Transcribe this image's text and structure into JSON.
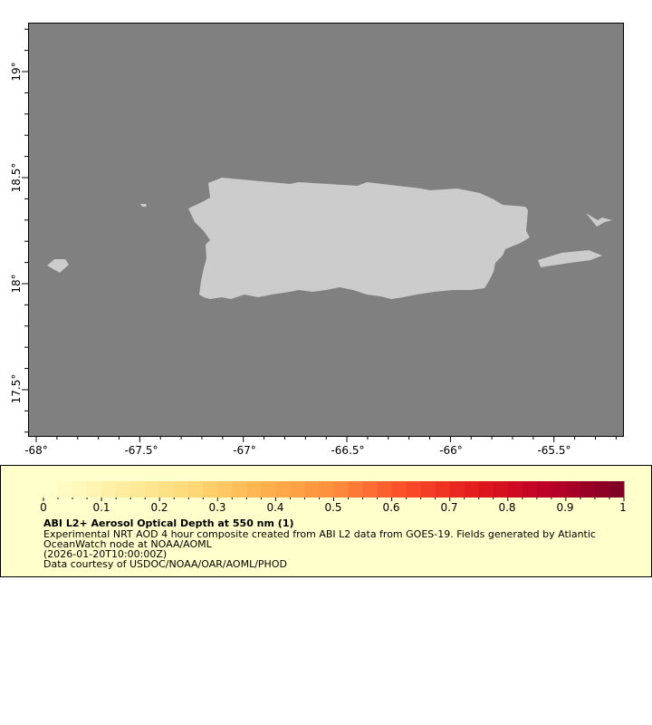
{
  "map": {
    "background_color": "#808080",
    "land_color": "#cccccc",
    "lon_ticks": [
      "-68°",
      "-67.5°",
      "-67°",
      "-66.5°",
      "-66°",
      "-65.5°"
    ],
    "lat_ticks": [
      "19°",
      "18.5°",
      "18°",
      "17.5°"
    ]
  },
  "legend": {
    "colorbar_ticks": [
      "0",
      "0.1",
      "0.2",
      "0.3",
      "0.4",
      "0.5",
      "0.6",
      "0.7",
      "0.8",
      "0.9",
      "1"
    ],
    "colormap_colors": [
      "#ffffcc",
      "#ffeda0",
      "#fed976",
      "#feb24c",
      "#fd8d3c",
      "#fc4e2a",
      "#e31a1c",
      "#bd0026",
      "#800026"
    ],
    "title": "ABI L2+ Aerosol Optical Depth at 550 nm (1)",
    "line1": "Experimental NRT AOD 4 hour composite created from ABI L2 data from GOES-19. Fields generated by Atlantic",
    "line2": "OceanWatch node at NOAA/AOML",
    "line3": "(2026-01-20T10:00:00Z)",
    "line4": "Data courtesy of USDOC/NOAA/OAR/AOML/PHOD"
  }
}
